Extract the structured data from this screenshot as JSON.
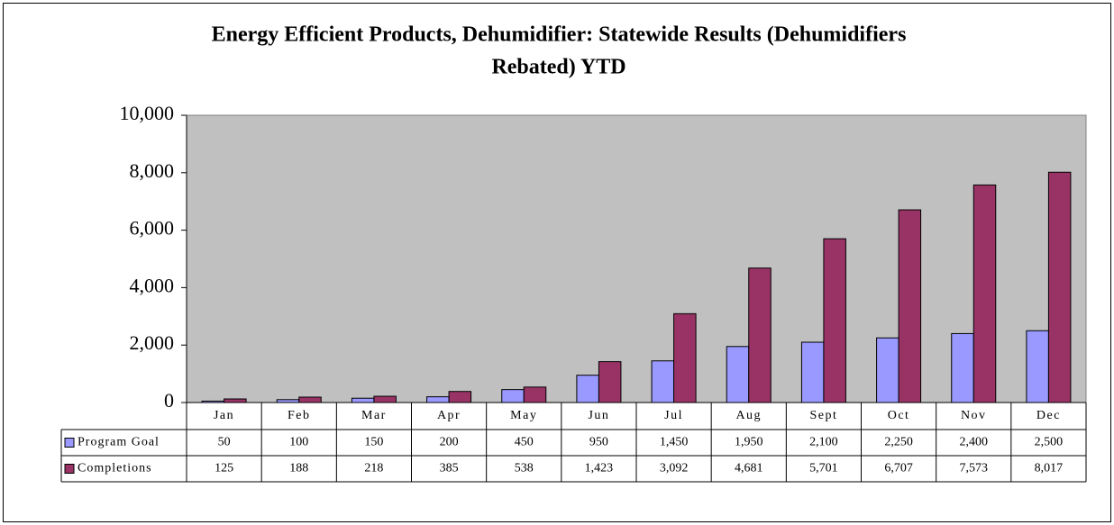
{
  "chart_data": {
    "type": "bar",
    "title": [
      "Energy Efficient Products, Dehumidifier: Statewide Results (Dehumidifiers",
      "Rebated) YTD"
    ],
    "categories": [
      "Jan",
      "Feb",
      "Mar",
      "Apr",
      "May",
      "Jun",
      "Jul",
      "Aug",
      "Sept",
      "Oct",
      "Nov",
      "Dec"
    ],
    "series": [
      {
        "name": "Program Goal",
        "color": "#9999ff",
        "values": [
          50,
          100,
          150,
          200,
          450,
          950,
          1450,
          1950,
          2100,
          2250,
          2400,
          2500
        ],
        "value_labels": [
          "50",
          "100",
          "150",
          "200",
          "450",
          "950",
          "1,450",
          "1,950",
          "2,100",
          "2,250",
          "2,400",
          "2,500"
        ]
      },
      {
        "name": "Completions",
        "color": "#993366",
        "values": [
          125,
          188,
          218,
          385,
          538,
          1423,
          3092,
          4681,
          5701,
          6707,
          7573,
          8017
        ],
        "value_labels": [
          "125",
          "188",
          "218",
          "385",
          "538",
          "1,423",
          "3,092",
          "4,681",
          "5,701",
          "6,707",
          "7,573",
          "8,017"
        ]
      }
    ],
    "ylim": [
      0,
      10000
    ],
    "yticks": [
      0,
      {
        "value": 2000,
        "label": "2,000"
      },
      {
        "value": 4000,
        "label": "4,000"
      },
      {
        "value": 6000,
        "label": "6,000"
      },
      {
        "value": 8000,
        "label": "8,000"
      },
      {
        "value": 10000,
        "label": "10,000"
      }
    ],
    "plot_background": "#c0c0c0"
  }
}
